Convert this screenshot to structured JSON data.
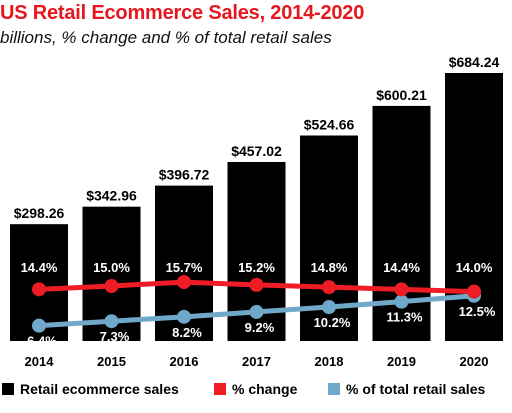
{
  "chart_data": {
    "type": "bar",
    "title": "US Retail Ecommerce Sales, 2014-2020",
    "subtitle": "billions, % change and % of total retail sales",
    "categories": [
      "2014",
      "2015",
      "2016",
      "2017",
      "2018",
      "2019",
      "2020"
    ],
    "series": [
      {
        "name": "Retail ecommerce sales",
        "type": "bar",
        "values": [
          298.26,
          342.96,
          396.72,
          457.02,
          524.66,
          600.21,
          684.24
        ],
        "labels": [
          "$298.26",
          "$342.96",
          "$396.72",
          "$457.02",
          "$524.66",
          "$600.21",
          "$684.24"
        ],
        "color": "#000000"
      },
      {
        "name": "% change",
        "type": "line",
        "values": [
          14.4,
          15.0,
          15.7,
          15.2,
          14.8,
          14.4,
          14.0
        ],
        "labels": [
          "14.4%",
          "15.0%",
          "15.7%",
          "15.2%",
          "14.8%",
          "14.4%",
          "14.0%"
        ],
        "color": "#ee1c25"
      },
      {
        "name": "% of total retail sales",
        "type": "line",
        "values": [
          6.4,
          7.3,
          8.2,
          9.2,
          10.2,
          11.3,
          12.5
        ],
        "labels": [
          "6.4%",
          "7.3%",
          "8.2%",
          "9.2%",
          "10.2%",
          "11.3%",
          "12.5%"
        ],
        "color": "#6fa8c9"
      }
    ],
    "legend_position": "bottom",
    "grid": false
  }
}
